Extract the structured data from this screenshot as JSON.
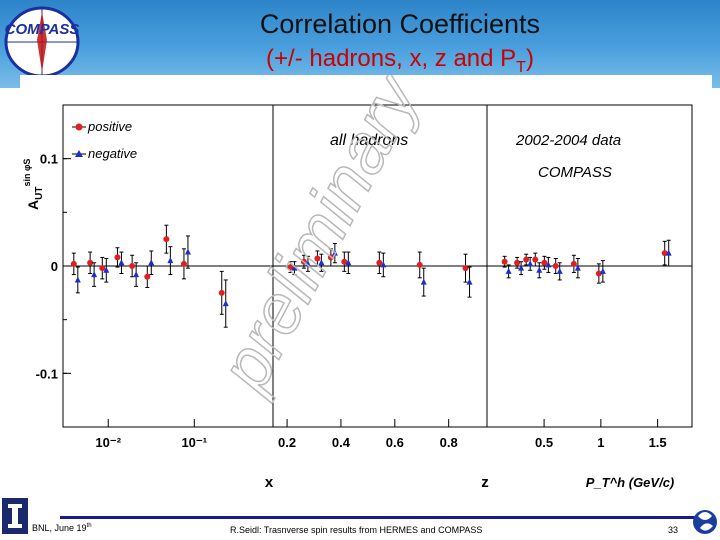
{
  "header": {
    "logo_text": "COMPASS",
    "title": "Correlation Coefficients",
    "subtitle_main": "(+/- hadrons, x, z and P",
    "subtitle_sub": "T",
    "subtitle_end": ")"
  },
  "footer": {
    "left": "BNL, June 19",
    "left_sup": "th",
    "middle": "R.Seidl: Trasnverse spin results from HERMES and COMPASS",
    "page": "33"
  },
  "colors": {
    "header_blue": "#3b8fd4",
    "positive": "#e02020",
    "negative": "#1b2fd0",
    "subtitle": "#cc0000"
  },
  "chart_data": {
    "type": "scatter",
    "title": "Correlation Coefficients (+/- hadrons, x, z and PT)",
    "ylabel": "A_UT^sin φ_S",
    "ylim": [
      -0.15,
      0.15
    ],
    "yticks": [
      0.1,
      0,
      -0.1
    ],
    "ytick_labels": [
      "0.1",
      "0",
      "-0.1"
    ],
    "legend": {
      "position": "top-left",
      "positive": "positive",
      "negative": "negative"
    },
    "annotations": {
      "center_label": "all hadrons",
      "data_years": "2002-2004 data",
      "experiment": "COMPASS",
      "watermark": "preliminary"
    },
    "panels": [
      {
        "xlabel": "x",
        "xscale": "log",
        "xlim": [
          0.0035,
          0.7
        ],
        "xtick_labels": [
          "10⁻²",
          "10⁻¹"
        ],
        "xtick_values": [
          0.01,
          0.1
        ],
        "series": [
          {
            "name": "positive",
            "x": [
              0.0042,
              0.0065,
              0.009,
              0.0135,
              0.02,
              0.03,
              0.05,
              0.08,
              0.22
            ],
            "y": [
              0.002,
              0.003,
              -0.002,
              0.008,
              0.0,
              -0.01,
              0.025,
              0.002,
              -0.025
            ],
            "err": [
              0.01,
              0.01,
              0.01,
              0.009,
              0.01,
              0.01,
              0.013,
              0.014,
              0.02
            ]
          },
          {
            "name": "negative",
            "x": [
              0.0042,
              0.0065,
              0.009,
              0.0135,
              0.02,
              0.03,
              0.05,
              0.08,
              0.22
            ],
            "y": [
              -0.013,
              -0.008,
              -0.004,
              0.003,
              -0.008,
              0.003,
              0.005,
              0.013,
              -0.035
            ],
            "err": [
              0.012,
              0.011,
              0.011,
              0.01,
              0.011,
              0.011,
              0.013,
              0.015,
              0.022
            ]
          }
        ]
      },
      {
        "xlabel": "z",
        "xscale": "linear",
        "xlim": [
          0.17,
          0.92
        ],
        "xtick_labels": [
          "0.2",
          "0.4",
          "0.6",
          "0.8"
        ],
        "xtick_values": [
          0.2,
          0.4,
          0.6,
          0.8
        ],
        "series": [
          {
            "name": "positive",
            "x": [
              0.22,
              0.27,
              0.32,
              0.37,
              0.42,
              0.55,
              0.7,
              0.87
            ],
            "y": [
              -0.001,
              0.004,
              0.007,
              0.008,
              0.004,
              0.003,
              0.001,
              -0.002
            ],
            "err": [
              0.005,
              0.006,
              0.007,
              0.008,
              0.009,
              0.01,
              0.012,
              0.013
            ]
          },
          {
            "name": "negative",
            "x": [
              0.22,
              0.27,
              0.32,
              0.37,
              0.42,
              0.55,
              0.7,
              0.87
            ],
            "y": [
              -0.002,
              0.002,
              0.003,
              0.012,
              0.003,
              0.001,
              -0.015,
              -0.015
            ],
            "err": [
              0.006,
              0.007,
              0.008,
              0.009,
              0.01,
              0.011,
              0.013,
              0.014
            ]
          }
        ]
      },
      {
        "xlabel": "P_T^h (GeV/c)",
        "xscale": "linear",
        "xlim": [
          0.05,
          1.75
        ],
        "xtick_labels": [
          "0.5",
          "1",
          "1.5"
        ],
        "xtick_values": [
          0.5,
          1.0,
          1.5
        ],
        "series": [
          {
            "name": "positive",
            "x": [
              0.17,
              0.28,
              0.36,
              0.44,
              0.52,
              0.62,
              0.78,
              1.0,
              1.58
            ],
            "y": [
              0.004,
              0.003,
              0.006,
              0.006,
              0.003,
              0.0,
              0.002,
              -0.007,
              0.012
            ],
            "err": [
              0.005,
              0.005,
              0.005,
              0.006,
              0.006,
              0.007,
              0.008,
              0.009,
              0.011
            ]
          },
          {
            "name": "negative",
            "x": [
              0.17,
              0.28,
              0.36,
              0.44,
              0.52,
              0.62,
              0.78,
              1.0,
              1.58
            ],
            "y": [
              -0.005,
              -0.002,
              0.002,
              -0.004,
              0.001,
              -0.005,
              -0.002,
              -0.005,
              0.012
            ],
            "err": [
              0.006,
              0.006,
              0.006,
              0.007,
              0.007,
              0.008,
              0.009,
              0.01,
              0.012
            ]
          }
        ]
      }
    ]
  }
}
